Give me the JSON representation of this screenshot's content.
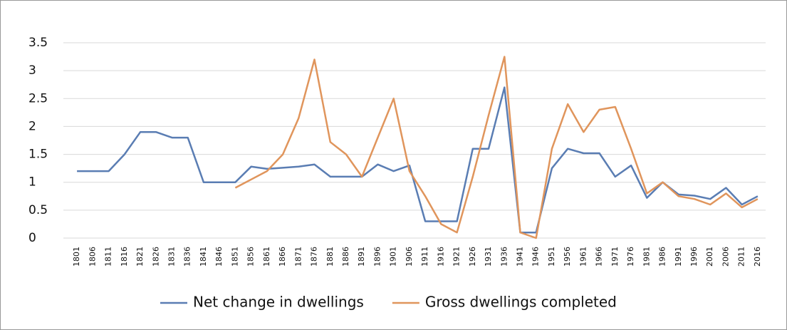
{
  "chart_data": {
    "type": "line",
    "categories": [
      "1801",
      "1806",
      "1811",
      "1816",
      "1821",
      "1826",
      "1831",
      "1836",
      "1841",
      "1846",
      "1851",
      "1856",
      "1861",
      "1866",
      "1871",
      "1876",
      "1881",
      "1886",
      "1891",
      "1896",
      "1901",
      "1906",
      "1911",
      "1916",
      "1921",
      "1926",
      "1931",
      "1936",
      "1941",
      "1946",
      "1951",
      "1956",
      "1961",
      "1966",
      "1971",
      "1976",
      "1981",
      "1986",
      "1991",
      "1996",
      "2001",
      "2006",
      "2011",
      "2016"
    ],
    "series": [
      {
        "name": "Net change in dwellings",
        "color": "#5a7db3",
        "values": [
          1.2,
          1.2,
          1.2,
          1.5,
          1.9,
          1.9,
          1.8,
          1.8,
          1.0,
          1.0,
          1.0,
          1.28,
          1.24,
          1.26,
          1.28,
          1.32,
          1.1,
          1.1,
          1.1,
          1.32,
          1.2,
          1.3,
          0.3,
          0.3,
          0.3,
          1.6,
          1.6,
          2.7,
          0.1,
          0.1,
          1.25,
          1.6,
          1.52,
          1.52,
          1.1,
          1.3,
          0.72,
          1.0,
          0.78,
          0.76,
          0.7,
          0.9,
          0.6,
          0.75
        ]
      },
      {
        "name": "Gross dwellings completed",
        "color": "#e0955c",
        "values": [
          null,
          null,
          null,
          null,
          null,
          null,
          null,
          null,
          null,
          null,
          0.9,
          1.05,
          1.2,
          1.5,
          2.15,
          3.2,
          1.72,
          1.5,
          1.1,
          1.8,
          2.5,
          1.2,
          0.75,
          0.25,
          0.1,
          1.1,
          2.2,
          3.25,
          0.1,
          0.0,
          1.6,
          2.4,
          1.9,
          2.3,
          2.35,
          1.6,
          0.8,
          1.0,
          0.75,
          0.7,
          0.6,
          0.8,
          0.55,
          0.7
        ]
      }
    ],
    "ylim": [
      0,
      3.5
    ],
    "yticks": [
      0,
      0.5,
      1,
      1.5,
      2,
      2.5,
      3,
      3.5
    ],
    "grid": true,
    "legend": "bottom"
  }
}
